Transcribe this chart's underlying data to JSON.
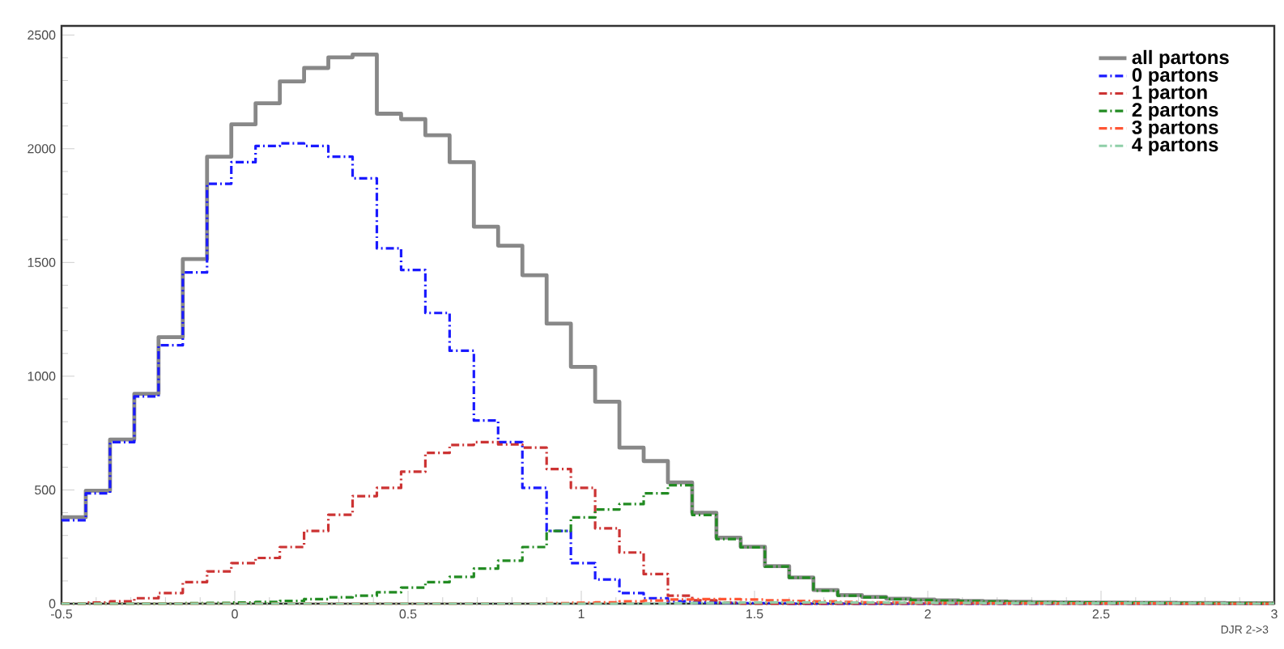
{
  "chart_data": {
    "type": "histogram",
    "xlabel": "DJR 2->3",
    "xlim": [
      -0.5,
      3
    ],
    "ylim": [
      0,
      2540
    ],
    "xticks": [
      -0.5,
      0,
      0.5,
      1,
      1.5,
      2,
      2.5,
      3
    ],
    "yticks": [
      0,
      500,
      1000,
      1500,
      2000,
      2500
    ],
    "legend": "top right",
    "bins": [
      -0.5,
      -0.43,
      -0.36,
      -0.29,
      -0.22,
      -0.15,
      -0.08,
      -0.01,
      0.06,
      0.13,
      0.2,
      0.27,
      0.34,
      0.41,
      0.48,
      0.55,
      0.62,
      0.69,
      0.76,
      0.83,
      0.9,
      0.97,
      1.04,
      1.11,
      1.18,
      1.25,
      1.32,
      1.39,
      1.46,
      1.53,
      1.6,
      1.67,
      1.74,
      1.81,
      1.88,
      1.95,
      2.02,
      2.09,
      2.16,
      2.23,
      2.3,
      2.37,
      2.44,
      2.51,
      2.58,
      2.65,
      2.72,
      2.79,
      2.86,
      2.93,
      3.0
    ],
    "series": [
      {
        "name": "all partons",
        "color": "#888888",
        "line_style": "solid",
        "values": [
          380,
          497,
          722,
          923,
          1172,
          1515,
          1965,
          2107,
          2200,
          2296,
          2355,
          2402,
          2414,
          2154,
          2130,
          2059,
          1941,
          1657,
          1574,
          1444,
          1231,
          1041,
          888,
          686,
          627,
          533,
          400,
          290,
          250,
          165,
          115,
          60,
          38,
          30,
          22,
          18,
          15,
          12,
          10,
          8,
          7,
          6,
          5,
          5,
          4,
          4,
          3,
          3,
          2,
          2
        ]
      },
      {
        "name": "0 partons",
        "color": "#1a1aff",
        "line_style": "dashed",
        "values": [
          367,
          485,
          710,
          911,
          1136,
          1456,
          1846,
          1941,
          2012,
          2024,
          2012,
          1965,
          1870,
          1562,
          1467,
          1278,
          1112,
          805,
          710,
          509,
          320,
          178,
          106,
          47,
          24,
          10,
          5,
          3,
          2,
          2,
          0,
          0,
          0,
          0,
          0,
          0,
          0,
          0,
          0,
          0,
          0,
          0,
          0,
          0,
          0,
          0,
          0,
          0,
          0,
          0
        ]
      },
      {
        "name": "1 parton",
        "color": "#cc3333",
        "line_style": "dashed",
        "values": [
          0,
          5,
          10,
          24,
          47,
          95,
          142,
          178,
          201,
          249,
          320,
          391,
          473,
          509,
          580,
          663,
          698,
          710,
          700,
          686,
          592,
          509,
          331,
          225,
          130,
          35,
          15,
          5,
          0,
          0,
          0,
          0,
          0,
          0,
          0,
          0,
          0,
          0,
          0,
          0,
          0,
          0,
          0,
          0,
          0,
          0,
          0,
          0,
          0,
          0
        ]
      },
      {
        "name": "2 partons",
        "color": "#228b22",
        "line_style": "dashed",
        "values": [
          0,
          0,
          0,
          0,
          0,
          2,
          3,
          5,
          8,
          12,
          20,
          28,
          35,
          50,
          71,
          95,
          118,
          154,
          189,
          249,
          320,
          379,
          414,
          438,
          485,
          521,
          390,
          284,
          248,
          163,
          114,
          57,
          35,
          28,
          20,
          16,
          13,
          11,
          9,
          7,
          6,
          5,
          5,
          4,
          4,
          3,
          3,
          2,
          2,
          2
        ]
      },
      {
        "name": "3 partons",
        "color": "#ff5533",
        "line_style": "dashed",
        "values": [
          0,
          0,
          0,
          0,
          0,
          0,
          0,
          0,
          0,
          0,
          0,
          0,
          0,
          0,
          0,
          0,
          0,
          0,
          0,
          0,
          2,
          4,
          6,
          10,
          14,
          18,
          20,
          20,
          18,
          15,
          12,
          10,
          8,
          6,
          5,
          4,
          3,
          3,
          2,
          2,
          2,
          1,
          1,
          1,
          1,
          1,
          0,
          0,
          0,
          0
        ]
      },
      {
        "name": "4 partons",
        "color": "#8fcfa8",
        "line_style": "dashed",
        "values": [
          0,
          0,
          0,
          0,
          0,
          0,
          0,
          0,
          0,
          0,
          0,
          0,
          0,
          0,
          0,
          0,
          0,
          0,
          0,
          0,
          0,
          0,
          0,
          0,
          0,
          2,
          3,
          4,
          5,
          6,
          6,
          6,
          5,
          5,
          4,
          4,
          3,
          3,
          2,
          2,
          2,
          1,
          1,
          1,
          1,
          1,
          1,
          1,
          0,
          0
        ]
      }
    ]
  }
}
